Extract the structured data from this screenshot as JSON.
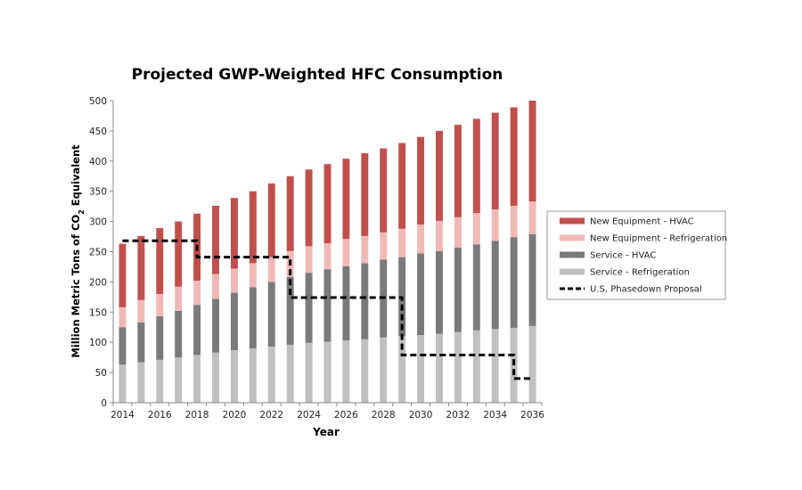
{
  "chart_data": {
    "type": "bar",
    "stacked": true,
    "title": "Projected GWP-Weighted HFC Consumption",
    "xlabel": "Year",
    "ylabel": "Million Metric Tons of CO2 Equivalent",
    "ylim": [
      0,
      500
    ],
    "yticks": [
      0,
      50,
      100,
      150,
      200,
      250,
      300,
      350,
      400,
      450,
      500
    ],
    "xtick_labels": [
      "2014",
      "2016",
      "2018",
      "2020",
      "2022",
      "2024",
      "2026",
      "2028",
      "2030",
      "2032",
      "2034",
      "2036"
    ],
    "categories": [
      "2014",
      "2015",
      "2016",
      "2017",
      "2018",
      "2019",
      "2020",
      "2021",
      "2022",
      "2023",
      "2024",
      "2025",
      "2026",
      "2027",
      "2028",
      "2029",
      "2030",
      "2031",
      "2032",
      "2033",
      "2034",
      "2035",
      "2036"
    ],
    "grid": false,
    "legend_position": "right",
    "series": [
      {
        "name": "Service - Refrigeration",
        "color": "#c0c0c0",
        "values": [
          63,
          67,
          71,
          75,
          79,
          83,
          87,
          90,
          93,
          96,
          99,
          101,
          103,
          105,
          108,
          110,
          112,
          114,
          117,
          120,
          122,
          124,
          127
        ]
      },
      {
        "name": "Service - HVAC",
        "color": "#7a7a7a",
        "values": [
          62,
          66,
          72,
          77,
          83,
          89,
          95,
          101,
          107,
          112,
          116,
          120,
          123,
          126,
          129,
          131,
          135,
          137,
          140,
          142,
          146,
          150,
          152
        ]
      },
      {
        "name": "New Equipment - Refrigeration",
        "color": "#f0b9b8",
        "values": [
          33,
          37,
          37,
          40,
          40,
          41,
          40,
          40,
          41,
          43,
          44,
          43,
          45,
          45,
          45,
          47,
          48,
          50,
          50,
          52,
          52,
          52,
          54
        ]
      },
      {
        "name": "New Equipment - HVAC",
        "color": "#c0504d",
        "values": [
          105,
          106,
          109,
          108,
          111,
          113,
          117,
          119,
          122,
          124,
          127,
          131,
          133,
          137,
          139,
          142,
          145,
          149,
          153,
          156,
          160,
          163,
          167
        ]
      }
    ],
    "line": {
      "name": "U.S. Phasedown Proposal",
      "color": "#000000",
      "style": "dashed",
      "values": [
        268,
        268,
        268,
        268,
        241,
        241,
        241,
        241,
        241,
        174,
        174,
        174,
        174,
        174,
        174,
        79,
        79,
        79,
        79,
        79,
        79,
        40,
        40
      ]
    },
    "legend_order": [
      "New Equipment - HVAC",
      "New Equipment - Refrigeration",
      "Service - HVAC",
      "Service - Refrigeration",
      "U.S. Phasedown Proposal"
    ]
  }
}
